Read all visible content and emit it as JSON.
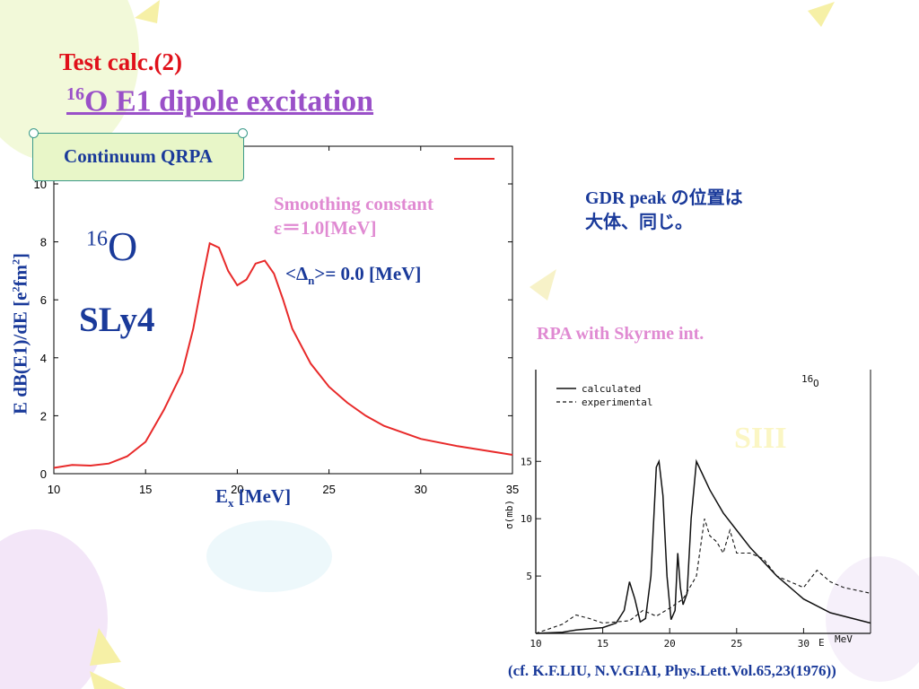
{
  "slide": {
    "title_line1": "Test calc.(2)",
    "title_mass": "16",
    "title_rest": "O E1 dipole excitation",
    "method_label": "Continuum QRPA",
    "nucleus_mass": "16",
    "nucleus_symbol": "O",
    "interaction": "SLy4",
    "smoothing_line1": "Smoothing constant",
    "smoothing_line2": "ε＝1.0[MeV]",
    "pairing_prefix": "<Δ",
    "pairing_sub": "n",
    "pairing_suffix": ">= 0.0 [MeV]",
    "gdr_line1": "GDR peak の位置は",
    "gdr_line2": "大体、同じ。",
    "rpa_label": "RPA with Skyrme int.",
    "faint_label": "SIII",
    "reference": "(cf. K.F.LIU, N.V.GIAI, Phys.Lett.Vol.65,23(1976))"
  },
  "colors": {
    "title_red": "#e0101a",
    "title_purple": "#9a50c8",
    "navy": "#1a3a9a",
    "pink": "#e08ad2",
    "curve_red": "#e82a2a"
  },
  "chart_data": [
    {
      "type": "line",
      "title": "",
      "xlabel_main": "E",
      "xlabel_sub": "x",
      "xlabel_unit": " [MeV]",
      "ylabel_main": "E dB(E1)/dE [e",
      "ylabel_sup1": "2",
      "ylabel_mid": "fm",
      "ylabel_sup2": "2",
      "ylabel_end": "]",
      "xlim": [
        10,
        35
      ],
      "ylim": [
        0,
        11.3
      ],
      "xticks": [
        "10",
        "15",
        "20",
        "25",
        "30",
        "35"
      ],
      "yticks": [
        "0",
        "2",
        "4",
        "6",
        "8",
        "10"
      ],
      "grid": false,
      "series": [
        {
          "color": "#e82a2a",
          "x": [
            10,
            11,
            12,
            13,
            14,
            15,
            16,
            17,
            17.6,
            18.1,
            18.5,
            19,
            19.5,
            20,
            20.5,
            21,
            21.5,
            22,
            22.5,
            23,
            24,
            25,
            26,
            27,
            28,
            30,
            32,
            34,
            35
          ],
          "y": [
            0.2,
            0.3,
            0.28,
            0.35,
            0.6,
            1.1,
            2.2,
            3.5,
            5.0,
            6.7,
            7.95,
            7.8,
            7.0,
            6.5,
            6.7,
            7.25,
            7.35,
            6.9,
            6.0,
            5.0,
            3.8,
            3.0,
            2.45,
            2.0,
            1.65,
            1.2,
            0.95,
            0.75,
            0.65
          ]
        }
      ]
    },
    {
      "type": "line",
      "title": "",
      "nucleus_mass": "16",
      "nucleus_symbol": "O",
      "xlabel": "E",
      "xunit": "MeV",
      "ylabel": "σ(mb)",
      "xlim": [
        10,
        35
      ],
      "ylim": [
        0,
        23
      ],
      "xticks": [
        "10",
        "15",
        "20",
        "25",
        "30"
      ],
      "yticks": [
        "5",
        "10",
        "15"
      ],
      "grid": false,
      "series": [
        {
          "name": "calculated",
          "style": "solid",
          "x": [
            10,
            12,
            13,
            14,
            15,
            16,
            16.6,
            17,
            17.4,
            17.8,
            18.2,
            18.6,
            19,
            19.2,
            19.5,
            19.8,
            20.1,
            20.4,
            20.6,
            20.8,
            21.0,
            21.3,
            21.6,
            22,
            22.4,
            23,
            24,
            25,
            26,
            28,
            30,
            32,
            35
          ],
          "y": [
            0,
            0.1,
            0.3,
            0.4,
            0.5,
            0.9,
            2.0,
            4.5,
            3.0,
            1.0,
            1.3,
            5.0,
            14.5,
            15.0,
            12.0,
            5.0,
            1.2,
            2.0,
            7.0,
            4.0,
            2.5,
            3.5,
            10.0,
            15.0,
            14.0,
            12.5,
            10.5,
            9.0,
            7.5,
            5.0,
            3.0,
            1.8,
            0.9
          ]
        },
        {
          "name": "experimental",
          "style": "dashed",
          "x": [
            10,
            12,
            13,
            14,
            15,
            16,
            17,
            18,
            19,
            20,
            21,
            22,
            22.6,
            23,
            23.5,
            24,
            24.5,
            25,
            26,
            27,
            28,
            30,
            31,
            32,
            33,
            35
          ],
          "y": [
            0,
            0.8,
            1.6,
            1.3,
            0.9,
            1.0,
            1.1,
            2.0,
            1.5,
            2.2,
            3.0,
            5.0,
            10.0,
            8.5,
            8.0,
            7.0,
            9.0,
            7.0,
            7.0,
            6.5,
            5.0,
            4.0,
            5.5,
            4.5,
            4.0,
            3.5
          ]
        }
      ]
    }
  ]
}
